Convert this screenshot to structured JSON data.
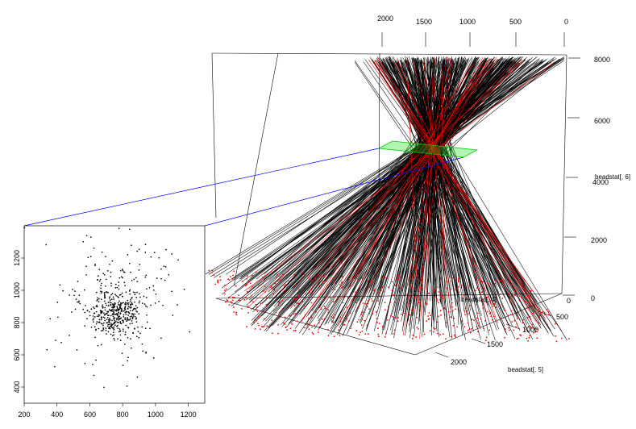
{
  "chart_data": [
    {
      "type": "scatter",
      "view": "3d-perspective",
      "xlabel": "beadstat[, 4]",
      "ylabel": "beadstat[, 5]",
      "zlabel": "beadstat[, 6]",
      "top_x_ticks": [
        "2000",
        "1500",
        "1000",
        "500",
        "0"
      ],
      "right_z_ticks": [
        "8000",
        "6000",
        "4000",
        "2000",
        "0"
      ],
      "floor_x_ticks": [
        "0"
      ],
      "floor_y_ticks": [
        "500",
        "1000",
        "1500",
        "2000"
      ],
      "series": [
        {
          "color": "#000000",
          "style": "lines",
          "count": 420
        },
        {
          "color": "#ff0000",
          "style": "lines",
          "count": 30
        },
        {
          "color": "#ff0000",
          "style": "points",
          "count": 560
        }
      ],
      "highlight_plane": {
        "color": "#00cc00"
      },
      "connector_color": "#0000ff",
      "grid": false
    },
    {
      "type": "scatter",
      "title": "",
      "xlabel": "",
      "ylabel": "",
      "xlim": [
        200,
        1300
      ],
      "ylim": [
        300,
        1400
      ],
      "x_ticks": [
        200,
        400,
        600,
        800,
        1000,
        1200
      ],
      "y_ticks": [
        400,
        600,
        800,
        1000,
        1200
      ],
      "point_color": "#000000",
      "center": [
        760,
        850
      ],
      "spread": [
        75,
        65
      ],
      "point_count": 560,
      "grid": false
    }
  ]
}
